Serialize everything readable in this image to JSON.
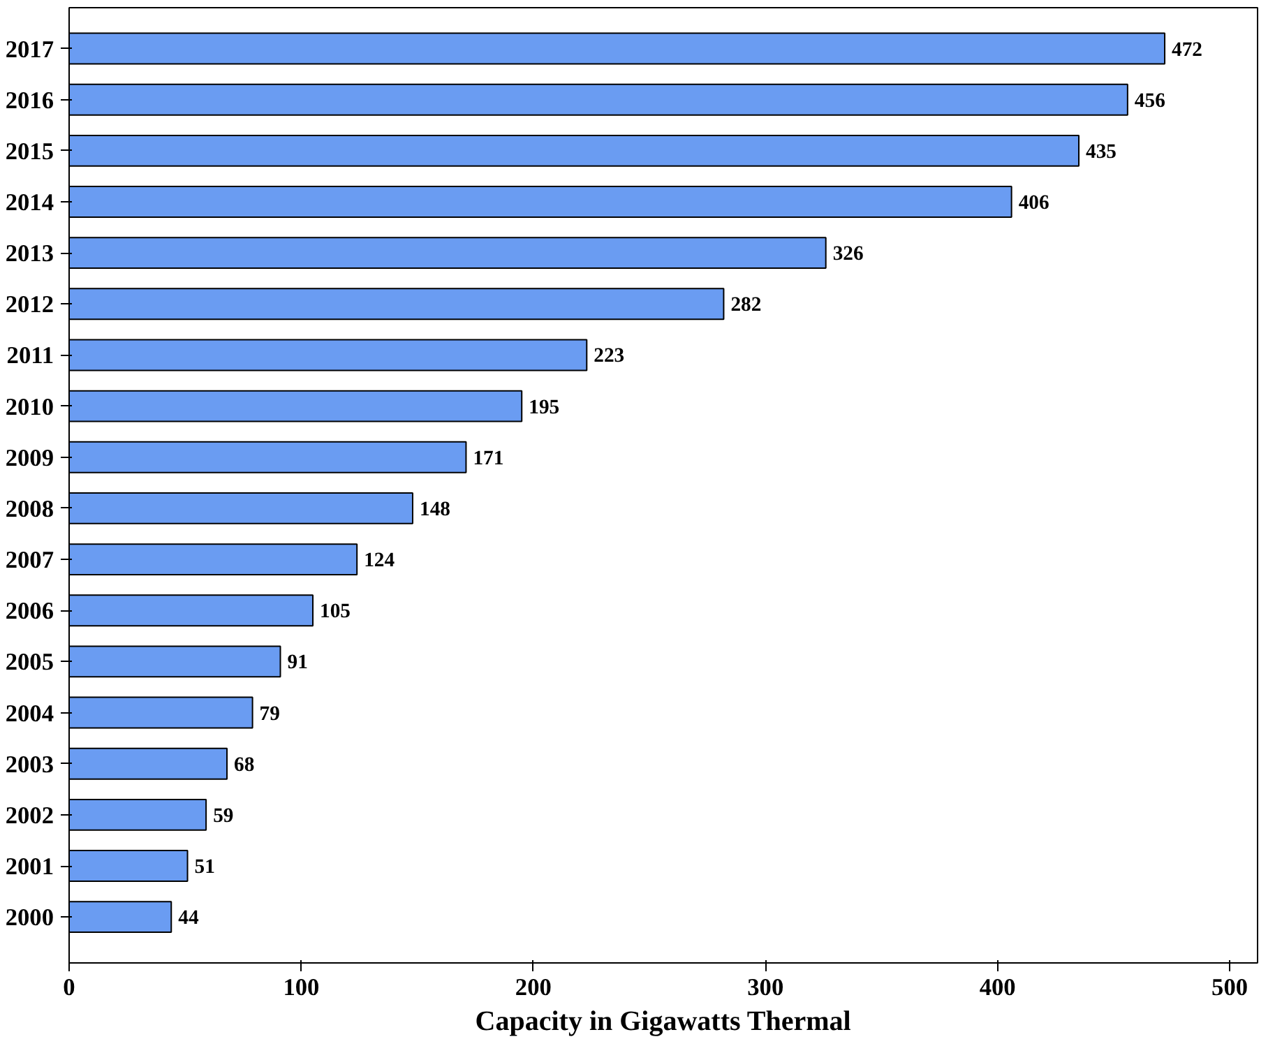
{
  "chart_data": {
    "type": "bar",
    "orientation": "horizontal",
    "xlabel": "Capacity in Gigawatts Thermal",
    "categories": [
      "2017",
      "2016",
      "2015",
      "2014",
      "2013",
      "2012",
      "2011",
      "2010",
      "2009",
      "2008",
      "2007",
      "2006",
      "2005",
      "2004",
      "2003",
      "2002",
      "2001",
      "2000"
    ],
    "values": [
      472,
      456,
      435,
      406,
      326,
      282,
      223,
      195,
      171,
      148,
      124,
      105,
      91,
      79,
      68,
      59,
      51,
      44
    ],
    "color": "#6a9cf2",
    "xlim": [
      0,
      512
    ],
    "xticks": [
      0,
      100,
      200,
      300,
      400,
      500
    ],
    "data_labels": true,
    "grid": false
  }
}
